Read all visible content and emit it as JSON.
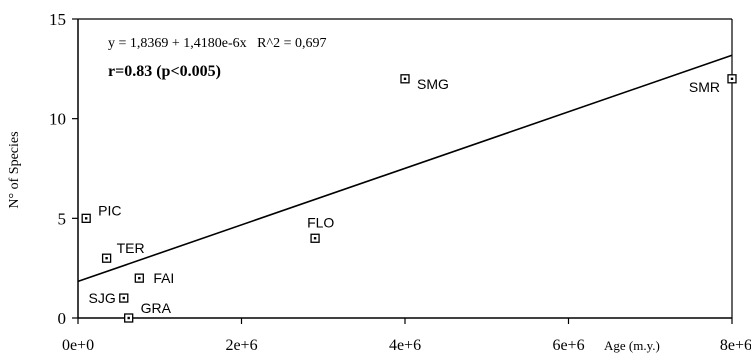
{
  "chart_data": {
    "type": "scatter",
    "title": "",
    "xlabel": "Age (m.y.)",
    "ylabel": "N° of Species",
    "xlim": [
      0,
      8000000
    ],
    "ylim": [
      0,
      15
    ],
    "x_ticks": [
      {
        "value": 0,
        "label": "0e+0"
      },
      {
        "value": 2000000,
        "label": "2e+6"
      },
      {
        "value": 4000000,
        "label": "4e+6"
      },
      {
        "value": 6000000,
        "label": "6e+6"
      },
      {
        "value": 8000000,
        "label": "8e+6"
      }
    ],
    "y_ticks": [
      {
        "value": 0,
        "label": "0"
      },
      {
        "value": 5,
        "label": "5"
      },
      {
        "value": 10,
        "label": "10"
      },
      {
        "value": 15,
        "label": "15"
      }
    ],
    "points": [
      {
        "label": "PIC",
        "x": 100000,
        "y": 5
      },
      {
        "label": "TER",
        "x": 350000,
        "y": 3
      },
      {
        "label": "FAI",
        "x": 750000,
        "y": 2
      },
      {
        "label": "SJG",
        "x": 560000,
        "y": 1
      },
      {
        "label": "GRA",
        "x": 620000,
        "y": 0
      },
      {
        "label": "FLO",
        "x": 2900000,
        "y": 4
      },
      {
        "label": "SMG",
        "x": 4000000,
        "y": 12
      },
      {
        "label": "SMR",
        "x": 8000000,
        "y": 12
      }
    ],
    "regression": {
      "intercept": 1.8369,
      "slope": 1.418e-06
    },
    "annotations": {
      "equation": "y = 1,8369 + 1,4180e-6x   R^2 = 0,697",
      "correlation": "r=0.83 (p<0.005)"
    },
    "grid": false,
    "legend": "none",
    "colors": {
      "marks": "#000000",
      "background": "#ffffff"
    }
  }
}
